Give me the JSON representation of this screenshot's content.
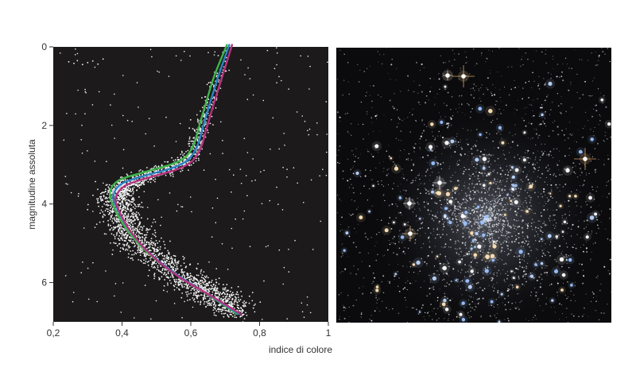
{
  "chart_data": {
    "type": "scatter",
    "title": "",
    "xlabel": "indice di colore",
    "ylabel": "magnitudine assoluta",
    "xlim": [
      0.2,
      1.0
    ],
    "ylim": [
      7,
      0
    ],
    "y_inverted": true,
    "grid": false,
    "x_ticks": [
      "0,2",
      "0,4",
      "0,6",
      "0,8",
      "1"
    ],
    "x_tick_values": [
      0.2,
      0.4,
      0.6,
      0.8,
      1.0
    ],
    "y_ticks": [
      "0",
      "2",
      "4",
      "6"
    ],
    "y_tick_values": [
      0,
      2,
      4,
      6
    ],
    "plot_background": "#1c1a1a",
    "point_color": "#f2f2f2",
    "sequence_ridge": [
      {
        "x": 0.74,
        "y": 6.75
      },
      {
        "x": 0.66,
        "y": 6.3
      },
      {
        "x": 0.58,
        "y": 5.9
      },
      {
        "x": 0.5,
        "y": 5.4
      },
      {
        "x": 0.44,
        "y": 4.9
      },
      {
        "x": 0.41,
        "y": 4.5
      },
      {
        "x": 0.39,
        "y": 4.1
      },
      {
        "x": 0.385,
        "y": 3.8
      },
      {
        "x": 0.4,
        "y": 3.55
      },
      {
        "x": 0.45,
        "y": 3.35
      },
      {
        "x": 0.52,
        "y": 3.15
      },
      {
        "x": 0.58,
        "y": 2.95
      },
      {
        "x": 0.61,
        "y": 2.65
      },
      {
        "x": 0.63,
        "y": 2.1
      },
      {
        "x": 0.65,
        "y": 1.5
      },
      {
        "x": 0.68,
        "y": 0.8
      },
      {
        "x": 0.71,
        "y": 0.0
      }
    ],
    "series": [
      {
        "color": "#3db54a",
        "points": [
          {
            "x": 0.735,
            "y": 6.8
          },
          {
            "x": 0.64,
            "y": 6.25
          },
          {
            "x": 0.55,
            "y": 5.75
          },
          {
            "x": 0.47,
            "y": 5.2
          },
          {
            "x": 0.41,
            "y": 4.6
          },
          {
            "x": 0.375,
            "y": 4.05
          },
          {
            "x": 0.365,
            "y": 3.7
          },
          {
            "x": 0.39,
            "y": 3.4
          },
          {
            "x": 0.46,
            "y": 3.2
          },
          {
            "x": 0.54,
            "y": 3.0
          },
          {
            "x": 0.585,
            "y": 2.8
          },
          {
            "x": 0.61,
            "y": 2.45
          },
          {
            "x": 0.625,
            "y": 2.0
          },
          {
            "x": 0.645,
            "y": 1.4
          },
          {
            "x": 0.67,
            "y": 0.7
          },
          {
            "x": 0.705,
            "y": -0.05
          }
        ]
      },
      {
        "color": "#2a83c6",
        "points": [
          {
            "x": 0.74,
            "y": 6.8
          },
          {
            "x": 0.65,
            "y": 6.3
          },
          {
            "x": 0.56,
            "y": 5.8
          },
          {
            "x": 0.48,
            "y": 5.25
          },
          {
            "x": 0.42,
            "y": 4.65
          },
          {
            "x": 0.385,
            "y": 4.1
          },
          {
            "x": 0.375,
            "y": 3.78
          },
          {
            "x": 0.4,
            "y": 3.48
          },
          {
            "x": 0.47,
            "y": 3.27
          },
          {
            "x": 0.55,
            "y": 3.07
          },
          {
            "x": 0.595,
            "y": 2.85
          },
          {
            "x": 0.62,
            "y": 2.5
          },
          {
            "x": 0.635,
            "y": 2.05
          },
          {
            "x": 0.655,
            "y": 1.45
          },
          {
            "x": 0.68,
            "y": 0.75
          },
          {
            "x": 0.712,
            "y": -0.05
          }
        ]
      },
      {
        "color": "#b5327d",
        "points": [
          {
            "x": 0.745,
            "y": 6.8
          },
          {
            "x": 0.655,
            "y": 6.32
          },
          {
            "x": 0.565,
            "y": 5.85
          },
          {
            "x": 0.485,
            "y": 5.3
          },
          {
            "x": 0.425,
            "y": 4.7
          },
          {
            "x": 0.39,
            "y": 4.15
          },
          {
            "x": 0.382,
            "y": 3.83
          },
          {
            "x": 0.41,
            "y": 3.53
          },
          {
            "x": 0.48,
            "y": 3.32
          },
          {
            "x": 0.56,
            "y": 3.12
          },
          {
            "x": 0.605,
            "y": 2.9
          },
          {
            "x": 0.63,
            "y": 2.55
          },
          {
            "x": 0.645,
            "y": 2.1
          },
          {
            "x": 0.665,
            "y": 1.5
          },
          {
            "x": 0.69,
            "y": 0.8
          },
          {
            "x": 0.72,
            "y": -0.05
          }
        ]
      }
    ],
    "horizontal_branch": [
      {
        "x": 0.245,
        "y": 0.38
      },
      {
        "x": 0.26,
        "y": 0.42
      },
      {
        "x": 0.27,
        "y": 0.35
      },
      {
        "x": 0.285,
        "y": 0.45
      },
      {
        "x": 0.3,
        "y": 0.4
      },
      {
        "x": 0.315,
        "y": 0.36
      },
      {
        "x": 0.33,
        "y": 0.44
      },
      {
        "x": 0.345,
        "y": 0.31
      }
    ]
  },
  "image": {
    "background": "#0b0b0d",
    "icon": "star-cluster-icon"
  }
}
